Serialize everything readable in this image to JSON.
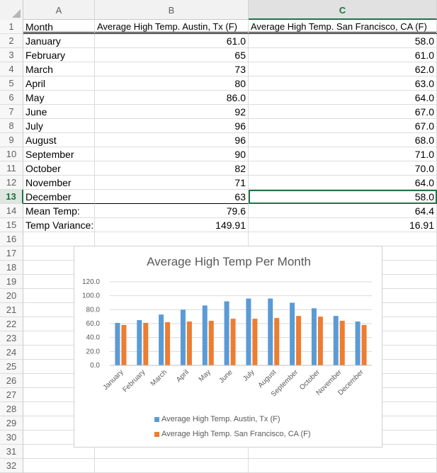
{
  "columns": [
    "A",
    "B",
    "C"
  ],
  "selected_column": "C",
  "selected_row": "13",
  "row_numbers": [
    "1",
    "2",
    "3",
    "4",
    "5",
    "6",
    "7",
    "8",
    "9",
    "10",
    "11",
    "12",
    "13",
    "14",
    "15",
    "16",
    "17",
    "18",
    "19",
    "20",
    "21",
    "22",
    "23",
    "24",
    "25",
    "26",
    "27",
    "28",
    "29",
    "30",
    "31",
    "32"
  ],
  "header": {
    "a": "Month",
    "b": "Average High Temp. Austin, Tx (F)",
    "c": "Average High Temp. San Francisco, CA (F)"
  },
  "rows": [
    {
      "a": "January",
      "b": "61.0",
      "c": "58.0"
    },
    {
      "a": "February",
      "b": "65",
      "c": "61.0"
    },
    {
      "a": "March",
      "b": "73",
      "c": "62.0"
    },
    {
      "a": "April",
      "b": "80",
      "c": "63.0"
    },
    {
      "a": "May",
      "b": "86.0",
      "c": "64.0"
    },
    {
      "a": "June",
      "b": "92",
      "c": "67.0"
    },
    {
      "a": "July",
      "b": "96",
      "c": "67.0"
    },
    {
      "a": "August",
      "b": "96",
      "c": "68.0"
    },
    {
      "a": "September",
      "b": "90",
      "c": "71.0"
    },
    {
      "a": "October",
      "b": "82",
      "c": "70.0"
    },
    {
      "a": "November",
      "b": "71",
      "c": "64.0"
    },
    {
      "a": "December",
      "b": "63",
      "c": "58.0"
    }
  ],
  "summary": [
    {
      "a": "Mean Temp:",
      "b": "79.6",
      "c": "64.4"
    },
    {
      "a": "Temp Variance:",
      "b": "149.91",
      "c": "16.91"
    }
  ],
  "chart_data": {
    "type": "bar",
    "title": "Average High Temp Per Month",
    "categories": [
      "January",
      "February",
      "March",
      "April",
      "May",
      "June",
      "July",
      "August",
      "September",
      "October",
      "November",
      "December"
    ],
    "series": [
      {
        "name": "Average High Temp. Austin, Tx (F)",
        "color": "#5b9bd5",
        "values": [
          61,
          65,
          73,
          80,
          86,
          92,
          96,
          96,
          90,
          82,
          71,
          63
        ]
      },
      {
        "name": "Average High Temp. San Francisco, CA (F)",
        "color": "#ed7d31",
        "values": [
          58,
          61,
          62,
          63,
          64,
          67,
          67,
          68,
          71,
          70,
          64,
          58
        ]
      }
    ],
    "y_ticks": [
      "120.0",
      "100.0",
      "80.0",
      "60.0",
      "40.0",
      "20.0",
      "0.0"
    ],
    "ylim": [
      0,
      120
    ],
    "grid": true,
    "legend_position": "bottom"
  }
}
